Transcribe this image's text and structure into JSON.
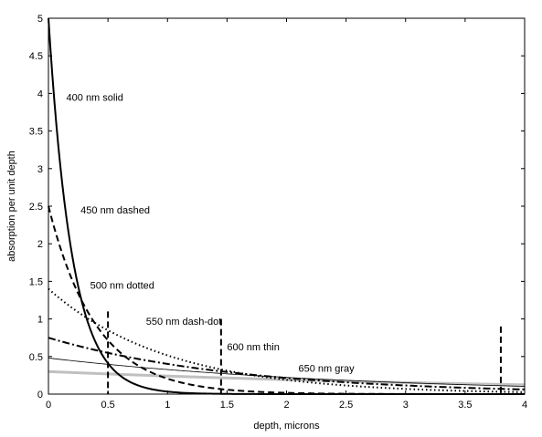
{
  "chart_data": {
    "type": "line",
    "title": "",
    "xlabel": "depth, microns",
    "ylabel": "absorption per unit depth",
    "xlim": [
      0,
      4
    ],
    "ylim": [
      0,
      5
    ],
    "xticks": [
      0,
      0.5,
      1,
      1.5,
      2,
      2.5,
      3,
      3.5,
      4
    ],
    "xtick_labels": [
      "0",
      "0.5",
      "1",
      "1.5",
      "2",
      "2.5",
      "3",
      "3.5",
      "4"
    ],
    "yticks": [
      0,
      0.5,
      1,
      1.5,
      2,
      2.5,
      3,
      3.5,
      4,
      4.5,
      5
    ],
    "ytick_labels": [
      "0",
      "0.5",
      "1",
      "1.5",
      "2",
      "2.5",
      "3",
      "3.5",
      "4",
      "4.5",
      "5"
    ],
    "grid": false,
    "legend": "none",
    "series": [
      {
        "name": "400 nm solid",
        "style": "solid-thick",
        "color": "#000000",
        "initial": 5.0,
        "decay_length": 0.2,
        "x": [
          0,
          0.1,
          0.2,
          0.3,
          0.4,
          0.5,
          0.6,
          0.8,
          1.0,
          1.5,
          2.0,
          4.0
        ],
        "y": [
          5.0,
          3.03,
          1.84,
          1.12,
          0.68,
          0.41,
          0.25,
          0.09,
          0.03,
          0.0,
          0.0,
          0.0
        ],
        "marker_depth": 0.5,
        "marker_top": 1.1
      },
      {
        "name": "450 nm dashed",
        "style": "dashed",
        "color": "#000000",
        "initial": 2.5,
        "decay_length": 0.4,
        "x": [
          0,
          0.2,
          0.4,
          0.6,
          0.8,
          1.0,
          1.5,
          2.0,
          2.5,
          3.0,
          4.0
        ],
        "y": [
          2.5,
          1.52,
          0.92,
          0.56,
          0.34,
          0.21,
          0.06,
          0.02,
          0.0,
          0.0,
          0.0
        ],
        "marker_depth": 1.45,
        "marker_top": 1.0
      },
      {
        "name": "500 nm dotted",
        "style": "dotted",
        "color": "#000000",
        "initial": 1.4,
        "decay_length": 1.0,
        "x": [
          0,
          0.5,
          1.0,
          1.5,
          2.0,
          2.5,
          3.0,
          3.5,
          4.0
        ],
        "y": [
          1.4,
          0.85,
          0.52,
          0.31,
          0.19,
          0.11,
          0.07,
          0.04,
          0.03
        ]
      },
      {
        "name": "550 nm dash-dot",
        "style": "dashdot",
        "color": "#000000",
        "initial": 0.75,
        "decay_length": 1.6,
        "x": [
          0,
          0.5,
          1.0,
          1.5,
          2.0,
          2.5,
          3.0,
          3.5,
          4.0
        ],
        "y": [
          0.75,
          0.55,
          0.4,
          0.29,
          0.21,
          0.16,
          0.11,
          0.08,
          0.06
        ],
        "marker_depth": 3.8,
        "marker_top": 0.9
      },
      {
        "name": "600 nm thin",
        "style": "thin",
        "color": "#000000",
        "initial": 0.48,
        "decay_length": 2.6,
        "x": [
          0,
          0.5,
          1.0,
          1.5,
          2.0,
          2.5,
          3.0,
          3.5,
          4.0
        ],
        "y": [
          0.48,
          0.4,
          0.33,
          0.26,
          0.22,
          0.18,
          0.15,
          0.12,
          0.1
        ]
      },
      {
        "name": "650 nm gray",
        "style": "gray-thick",
        "color": "#c0c0c0",
        "initial": 0.3,
        "decay_length": 4.5,
        "x": [
          0,
          0.5,
          1.0,
          1.5,
          2.0,
          2.5,
          3.0,
          3.5,
          4.0
        ],
        "y": [
          0.3,
          0.27,
          0.24,
          0.22,
          0.19,
          0.17,
          0.15,
          0.14,
          0.12
        ]
      }
    ],
    "annotations": [
      {
        "text": "400 nm solid",
        "x": 0.15,
        "y": 3.9
      },
      {
        "text": "450 nm dashed",
        "x": 0.27,
        "y": 2.4
      },
      {
        "text": "500 nm dotted",
        "x": 0.35,
        "y": 1.4
      },
      {
        "text": "550 nm dash-dot",
        "x": 0.82,
        "y": 0.92
      },
      {
        "text": "600 nm thin",
        "x": 1.5,
        "y": 0.58
      },
      {
        "text": "650 nm gray",
        "x": 2.1,
        "y": 0.3
      }
    ]
  }
}
